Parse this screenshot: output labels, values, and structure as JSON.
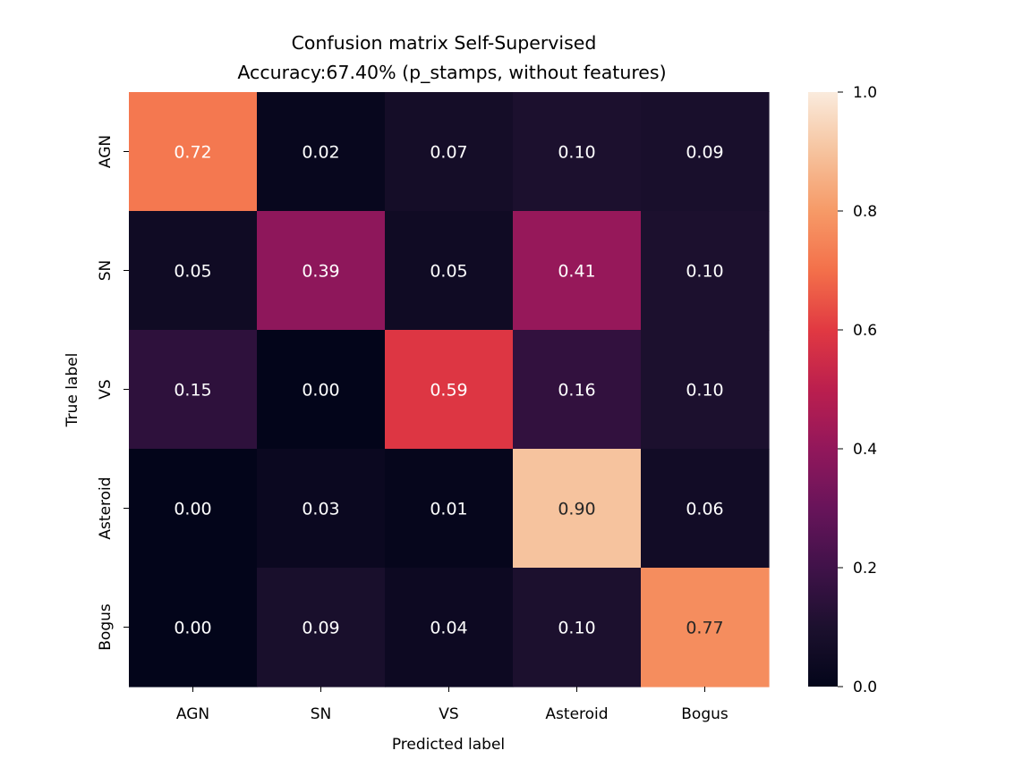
{
  "chart_data": {
    "type": "heatmap",
    "title": "Confusion matrix Self-Supervised",
    "subtitle": "Accuracy:67.40% (p_stamps, without features)",
    "xlabel": "Predicted label",
    "ylabel": "True label",
    "x_categories": [
      "AGN",
      "SN",
      "VS",
      "Asteroid",
      "Bogus"
    ],
    "y_categories": [
      "AGN",
      "SN",
      "VS",
      "Asteroid",
      "Bogus"
    ],
    "values": [
      [
        0.72,
        0.02,
        0.07,
        0.1,
        0.09
      ],
      [
        0.05,
        0.39,
        0.05,
        0.41,
        0.1
      ],
      [
        0.15,
        0.0,
        0.59,
        0.16,
        0.1
      ],
      [
        0.0,
        0.03,
        0.01,
        0.9,
        0.06
      ],
      [
        0.0,
        0.09,
        0.04,
        0.1,
        0.77
      ]
    ],
    "value_format": "0.00",
    "colormap": "rocket",
    "colorbar": {
      "range": [
        0.0,
        1.0
      ],
      "ticks": [
        "0.0",
        "0.2",
        "0.4",
        "0.6",
        "0.8",
        "1.0"
      ],
      "placement": "right"
    },
    "annotation_colors": {
      "on_dark": "#ffffff",
      "on_light": "#262626"
    },
    "grid": false,
    "legend": "none"
  }
}
